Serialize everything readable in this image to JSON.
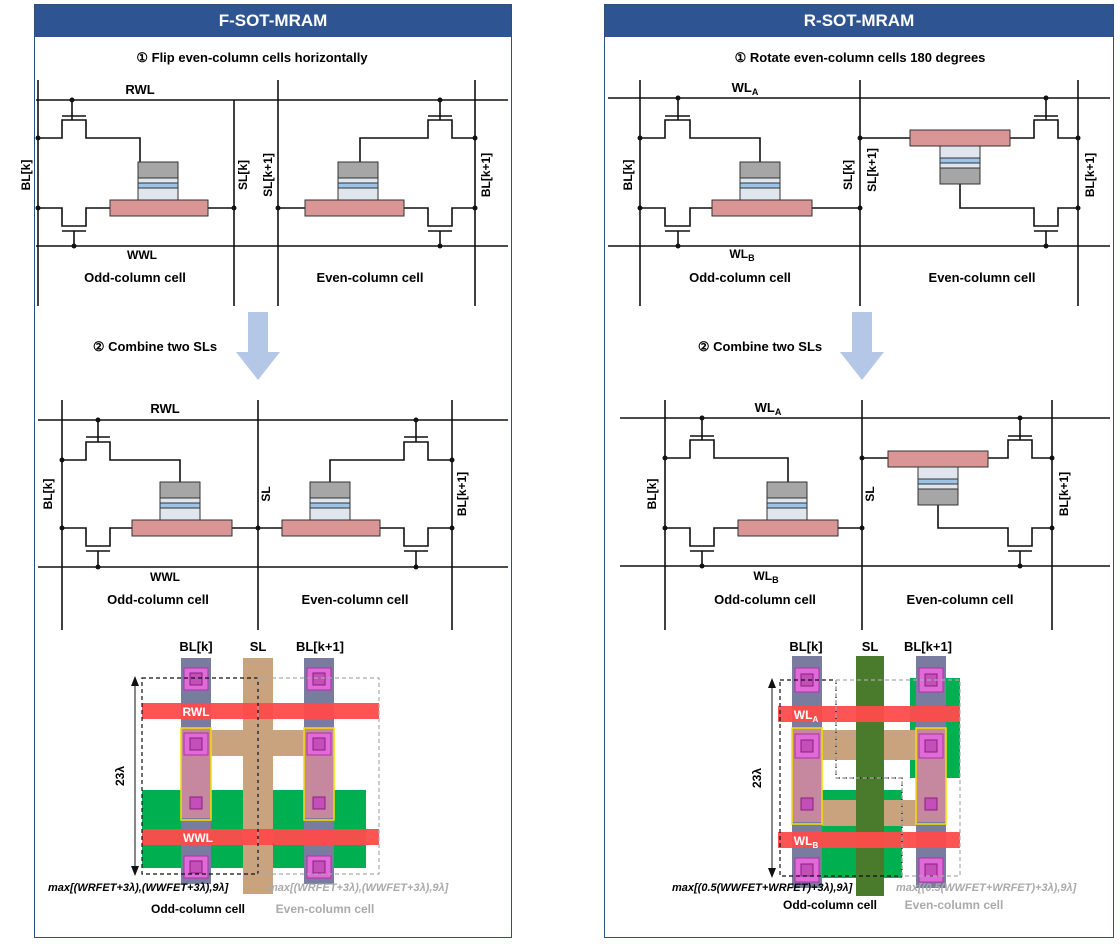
{
  "left": {
    "title": "F-SOT-MRAM",
    "step1": "① Flip even-column cells horizontally",
    "step2": "② Combine two SLs",
    "rwl": "RWL",
    "wwl": "WWL",
    "blk": "BL[k]",
    "blk1": "BL[k+1]",
    "slk": "SL[k]",
    "slk1": "SL[k+1]",
    "sl": "SL",
    "odd": "Odd-column cell",
    "even": "Even-column cell",
    "lay_blk": "BL[k]",
    "lay_sl": "SL",
    "lay_blk1": "BL[k+1]",
    "lay_rwl": "RWL",
    "lay_wwl": "WWL",
    "height": "23λ",
    "formula_odd": "max[(WRFET+3λ),(WWFET+3λ),9λ]",
    "formula_even": "max[(WRFET+3λ),(WWFET+3λ),9λ]",
    "lay_odd": "Odd-column cell",
    "lay_even": "Even-column cell"
  },
  "right": {
    "title": "R-SOT-MRAM",
    "step1": "① Rotate even-column cells 180 degrees",
    "step2": "② Combine two SLs",
    "wla": "WLA",
    "wlb": "WLB",
    "blk": "BL[k]",
    "blk1": "BL[k+1]",
    "slk": "SL[k]",
    "slk1": "SL[k+1]",
    "sl": "SL",
    "odd": "Odd-column cell",
    "even": "Even-column cell",
    "lay_blk": "BL[k]",
    "lay_sl": "SL",
    "lay_blk1": "BL[k+1]",
    "lay_wla": "WLA",
    "lay_wlb": "WLB",
    "height": "23λ",
    "formula_odd": "max[(0.5(WWFET+WRFET)+3λ),9λ]",
    "formula_even": "max[(0.5(WWFET+WRFET)+3λ),9λ]",
    "lay_odd": "Odd-column cell",
    "lay_even": "Even-column cell"
  },
  "colors": {
    "header": "#2e5591",
    "sot_channel": "#d99694",
    "mtj_top": "#a6a6a6",
    "mtj_blue": "#9dc3e6",
    "arrow": "#b4c7e7",
    "wl_red": "#ff4b4b",
    "diffusion_green": "#00b050",
    "sl_tan": "#c9a37e",
    "sl_dark_green": "#4a7b2c",
    "bl_metal": "#7a7c9f",
    "contact_pink": "#e06bd8"
  }
}
